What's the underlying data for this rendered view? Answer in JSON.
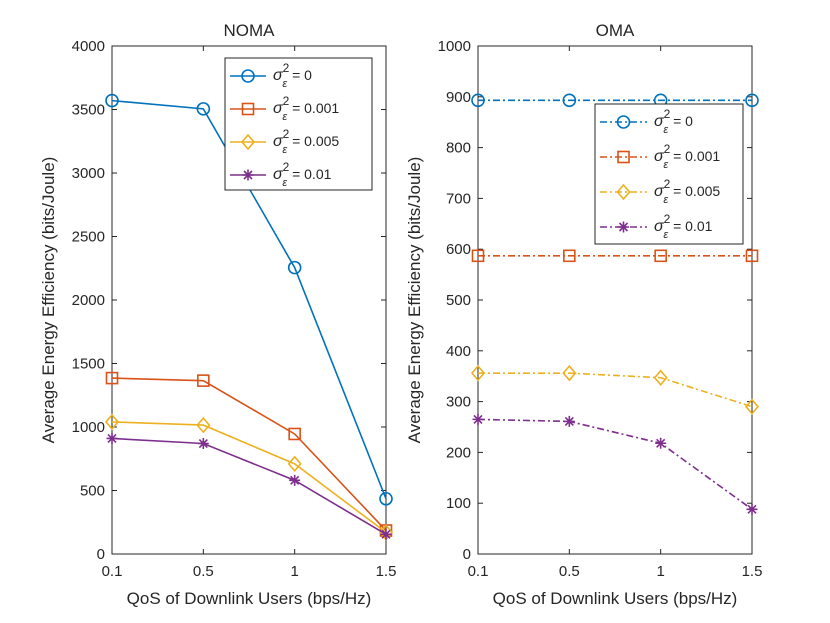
{
  "chart_data": [
    {
      "type": "line",
      "title": "NOMA",
      "xlabel": "QoS of Downlink Users (bps/Hz)",
      "ylabel": "Average Energy Efficiency (bits/Joule)",
      "x": [
        0.1,
        0.5,
        1,
        1.5
      ],
      "xticklabels": [
        "0.1",
        "0.5",
        "1",
        "1.5"
      ],
      "ylim": [
        0,
        4000
      ],
      "yticks": [
        0,
        500,
        1000,
        1500,
        2000,
        2500,
        3000,
        3500,
        4000
      ],
      "legend_position": "top-right",
      "line_style": "solid",
      "series": [
        {
          "name": "σ_ε² = 0",
          "sub": "ε",
          "sup": "2",
          "eq": "= 0",
          "marker": "circle",
          "color": "#0072BD",
          "values": [
            3570,
            3505,
            2255,
            435
          ]
        },
        {
          "name": "σ_ε² = 0.001",
          "sub": "ε",
          "sup": "2",
          "eq": "= 0.001",
          "marker": "square",
          "color": "#D95319",
          "values": [
            1385,
            1365,
            945,
            185
          ]
        },
        {
          "name": "σ_ε² = 0.005",
          "sub": "ε",
          "sup": "2",
          "eq": "= 0.005",
          "marker": "diamond",
          "color": "#EDB120",
          "values": [
            1040,
            1015,
            710,
            170
          ]
        },
        {
          "name": "σ_ε² = 0.01",
          "sub": "ε",
          "sup": "2",
          "eq": "= 0.01",
          "marker": "asterisk",
          "color": "#7E2F8E",
          "values": [
            910,
            870,
            580,
            155
          ]
        }
      ]
    },
    {
      "type": "line",
      "title": "OMA",
      "xlabel": "QoS of Downlink Users (bps/Hz)",
      "ylabel": "Average Energy Efficiency (bits/Joule)",
      "x": [
        0.1,
        0.5,
        1,
        1.5
      ],
      "xticklabels": [
        "0.1",
        "0.5",
        "1",
        "1.5"
      ],
      "ylim": [
        0,
        1000
      ],
      "yticks": [
        0,
        100,
        200,
        300,
        400,
        500,
        600,
        700,
        800,
        900,
        1000
      ],
      "legend_position": "top-right",
      "line_style": "dash-dot",
      "series": [
        {
          "name": "σ_ε² = 0",
          "sub": "ε",
          "sup": "2",
          "eq": "= 0",
          "marker": "circle",
          "color": "#0072BD",
          "values": [
            893,
            893,
            893,
            893
          ]
        },
        {
          "name": "σ_ε² = 0.001",
          "sub": "ε",
          "sup": "2",
          "eq": "= 0.001",
          "marker": "square",
          "color": "#D95319",
          "values": [
            587,
            587,
            587,
            587
          ]
        },
        {
          "name": "σ_ε² = 0.005",
          "sub": "ε",
          "sup": "2",
          "eq": "= 0.005",
          "marker": "diamond",
          "color": "#EDB120",
          "values": [
            356,
            356,
            347,
            290
          ]
        },
        {
          "name": "σ_ε² = 0.01",
          "sub": "ε",
          "sup": "2",
          "eq": "= 0.01",
          "marker": "asterisk",
          "color": "#7E2F8E",
          "values": [
            265,
            261,
            218,
            88
          ]
        }
      ]
    }
  ]
}
